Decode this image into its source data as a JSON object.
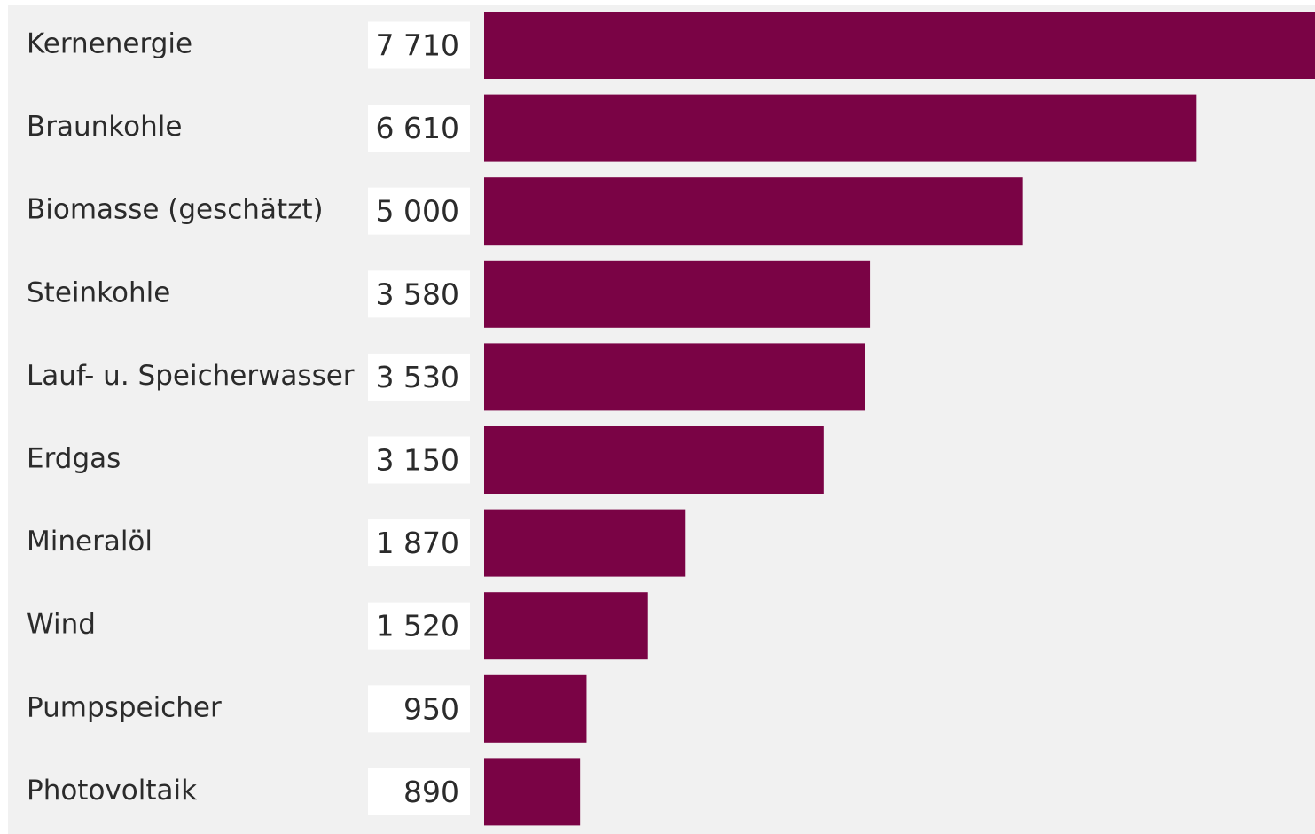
{
  "chart_data": {
    "type": "bar",
    "orientation": "horizontal",
    "title": "",
    "xlabel": "",
    "ylabel": "",
    "categories": [
      "Kernenergie",
      "Braunkohle",
      "Biomasse (geschätzt)",
      "Steinkohle",
      "Lauf- u. Speicherwasser",
      "Erdgas",
      "Mineralöl",
      "Wind",
      "Pumpspeicher",
      "Photovoltaik"
    ],
    "values": [
      7710,
      6610,
      5000,
      3580,
      3530,
      3150,
      1870,
      1520,
      950,
      890
    ],
    "value_labels": [
      "7 710",
      "6 610",
      "5 000",
      "3 580",
      "3 530",
      "3 150",
      "1 870",
      "1 520",
      "950",
      "890"
    ],
    "xlim": [
      0,
      7710
    ],
    "grid": false,
    "legend": "none",
    "bar_color": "#7a0345",
    "label_box_color": "#ffffff",
    "background_color": "#f1f1f1"
  }
}
